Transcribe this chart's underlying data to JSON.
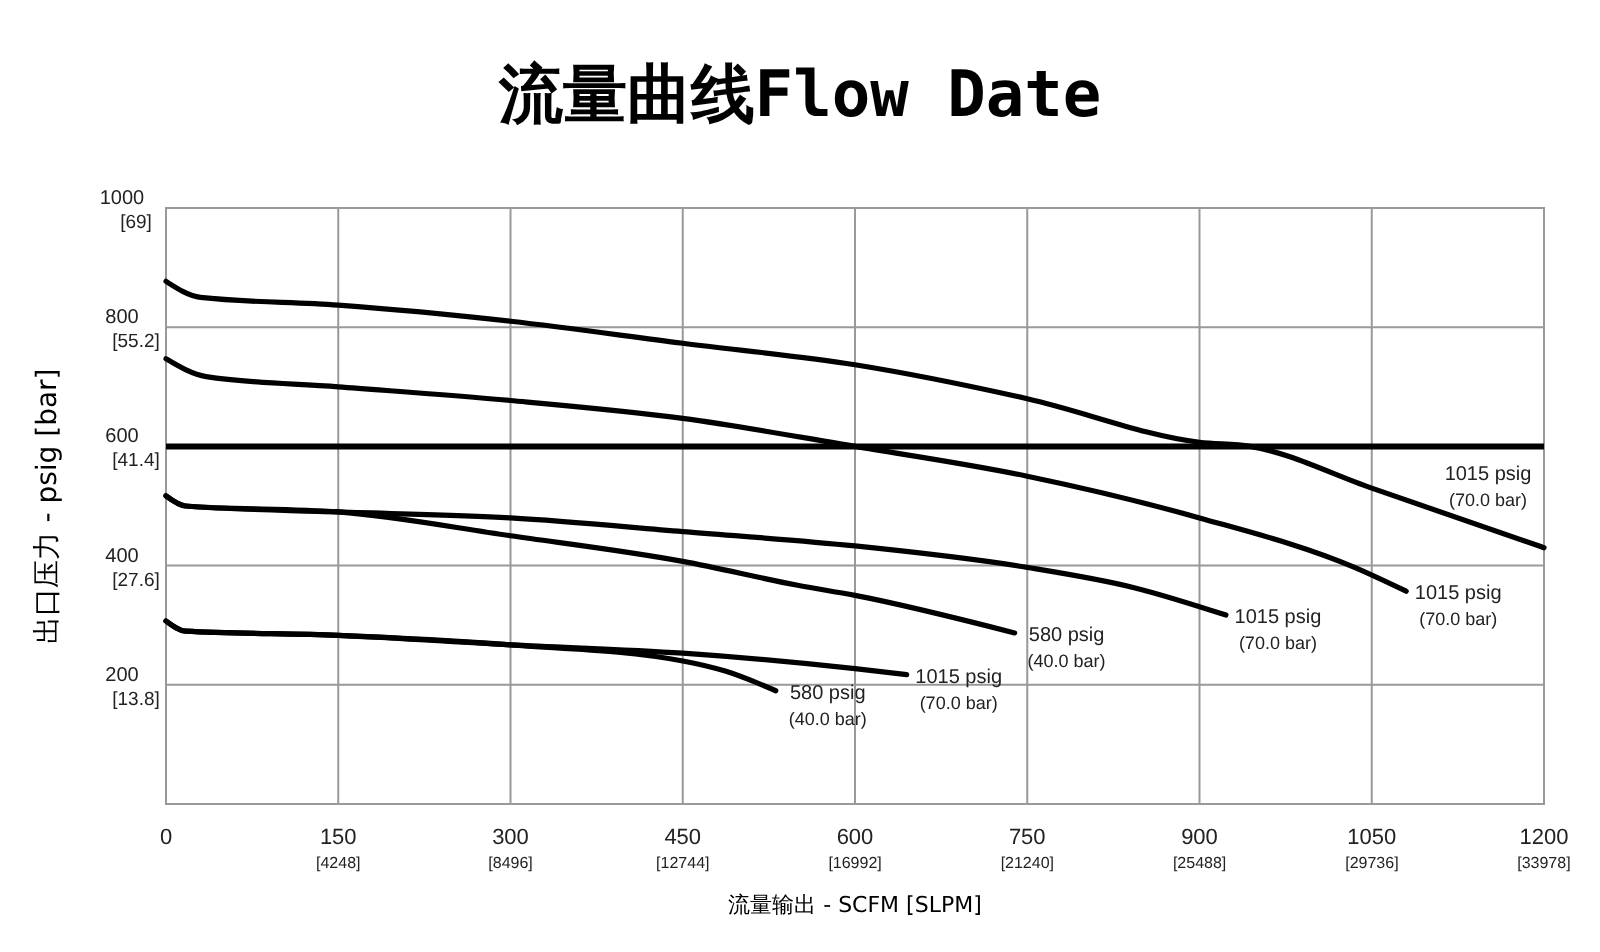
{
  "chart_data": {
    "type": "line",
    "title": "流量曲线Flow Date",
    "xlabel": "流量输出 - SCFM [SLPM]",
    "ylabel": "出口压力 - psig [bar]",
    "xlim": [
      0,
      1200
    ],
    "ylim": [
      0,
      1000
    ],
    "xticks": [
      0,
      150,
      300,
      450,
      600,
      750,
      900,
      1050,
      1200
    ],
    "yticks": [
      {
        "value": 0,
        "label": null
      },
      200,
      400,
      600,
      800,
      1000
    ],
    "x2lim": [
      0,
      33980
    ],
    "x2ticks": [
      {
        "value": 4248,
        "label": "[4248]"
      },
      {
        "value": 8496,
        "label": "[8496]"
      },
      {
        "value": 12744,
        "label": "[12744]"
      },
      {
        "value": 16992,
        "label": "[16992]"
      },
      {
        "value": 21240,
        "label": "[21240]"
      },
      {
        "value": 25488,
        "label": "[25488]"
      },
      {
        "value": 29736,
        "label": "[29736]"
      },
      {
        "value": 33978,
        "label": "[33978]"
      }
    ],
    "y2lim": [
      0,
      69
    ],
    "y2ticks": [
      {
        "value": 13.8,
        "label": "[13.8]"
      },
      {
        "value": 27.6,
        "label": "[27.6]"
      },
      {
        "value": 41.4,
        "label": "[41.4]"
      },
      {
        "value": 55.2,
        "label": "[55.2]"
      },
      {
        "value": 69,
        "label": "[69]"
      }
    ],
    "grid": true,
    "marker": "none",
    "line_style": "solid",
    "ref_lines": [
      {
        "axis": "y",
        "value": 600,
        "color": "#000000"
      }
    ],
    "series": [
      {
        "name": "1015 psig (70.0 bar)",
        "color": "#000000",
        "x": [
          0,
          30,
          150,
          300,
          450,
          600,
          750,
          900,
          944,
          1050,
          1200
        ],
        "values": [
          877,
          850,
          837,
          810,
          773,
          737,
          680,
          607,
          600,
          530,
          430
        ]
      },
      {
        "name": "1015 psig (70.0 bar)",
        "color": "#000000",
        "x": [
          0,
          35,
          150,
          300,
          450,
          600,
          750,
          900,
          1035,
          1080
        ],
        "values": [
          747,
          717,
          700,
          677,
          647,
          600,
          550,
          480,
          397,
          357
        ]
      },
      {
        "name": "1015 psig (70.0 bar)",
        "color": "#000000",
        "x": [
          0,
          17,
          150,
          300,
          450,
          600,
          750,
          843,
          923
        ],
        "values": [
          517,
          500,
          490,
          480,
          457,
          433,
          397,
          363,
          317
        ]
      },
      {
        "name": "580 psig (40.0 bar)",
        "color": "#000000",
        "x": [
          0,
          17,
          150,
          300,
          450,
          550,
          600,
          739
        ],
        "values": [
          517,
          500,
          490,
          450,
          407,
          367,
          350,
          287
        ]
      },
      {
        "name": "1015 psig (70.0 bar)",
        "color": "#000000",
        "x": [
          0,
          17,
          150,
          300,
          450,
          600,
          645
        ],
        "values": [
          307,
          290,
          283,
          267,
          253,
          227,
          217
        ]
      },
      {
        "name": "580 psig (40.0 bar)",
        "color": "#000000",
        "x": [
          0,
          17,
          150,
          300,
          450,
          487,
          531
        ],
        "values": [
          307,
          290,
          283,
          267,
          240,
          223,
          190
        ]
      }
    ]
  }
}
